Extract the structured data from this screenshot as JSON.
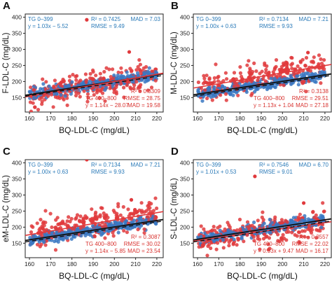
{
  "colors": {
    "blue": "#3b78c2",
    "red": "#e0393c",
    "blue_text": "#2a7ab8",
    "red_text": "#d8322f",
    "regression": "#111111",
    "axis": "#222222"
  },
  "chart_data": [
    {
      "type": "scatter",
      "panel": "A",
      "ylabel": "F-LDL-C (mg/dL)",
      "xlabel": "BQ-LDL-C (mg/dL)",
      "xlim": [
        158,
        223
      ],
      "ylim": [
        105,
        410
      ],
      "xticks": [
        160,
        170,
        180,
        190,
        200,
        210,
        220
      ],
      "yticks": [
        150,
        200,
        250,
        300,
        350,
        400
      ],
      "grid": false,
      "stats_blue": {
        "group": "TG 0–399",
        "r2": "R² = 0.7425",
        "equation": "y = 1.03x − 5.52",
        "rmse": "RMSE = 9.49",
        "mad": "MAD = 7.03"
      },
      "stats_red": {
        "group": "TG 400–800",
        "r2": "R² = 0.3309",
        "equation": "y = 1.14x − 28.07",
        "rmse": "RMSE = 28.75",
        "mad": "MAD = 19.58"
      },
      "series": [
        {
          "color": "blue",
          "slope": 1.03,
          "intercept": -5.52,
          "spread": 8
        },
        {
          "color": "red",
          "slope": 1.14,
          "intercept": -28.07,
          "spread": 22
        }
      ],
      "outliers": [
        [
          187,
          392
        ],
        [
          207,
          292
        ]
      ]
    },
    {
      "type": "scatter",
      "panel": "B",
      "ylabel": "M-LDL-C (mg/dL)",
      "xlabel": "BQ-LDL-C (mg/dL)",
      "xlim": [
        158,
        223
      ],
      "ylim": [
        105,
        410
      ],
      "xticks": [
        160,
        170,
        180,
        190,
        200,
        210,
        220
      ],
      "yticks": [
        150,
        200,
        250,
        300,
        350,
        400
      ],
      "grid": false,
      "stats_blue": {
        "group": "TG 0–399",
        "r2": "R² = 0.7134",
        "equation": "y = 1.00x + 0.63",
        "rmse": "RMSE = 9.93",
        "mad": "MAD = 7.21"
      },
      "stats_red": {
        "group": "TG 400–800",
        "r2": "R² = 0.3138",
        "equation": "y = 1.13x + 1.04",
        "rmse": "RMSE = 29.51",
        "mad": "MAD = 27.18"
      },
      "series": [
        {
          "color": "blue",
          "slope": 1.0,
          "intercept": 0.63,
          "spread": 8
        },
        {
          "color": "red",
          "slope": 1.13,
          "intercept": 1.04,
          "spread": 22
        }
      ],
      "outliers": [
        [
          187,
          425
        ],
        [
          212,
          290
        ]
      ]
    },
    {
      "type": "scatter",
      "panel": "C",
      "ylabel": "eM-LDL-C (mg/dL)",
      "xlabel": "BQ-LDL-C (mg/dL)",
      "xlim": [
        158,
        223
      ],
      "ylim": [
        105,
        410
      ],
      "xticks": [
        160,
        170,
        180,
        190,
        200,
        210,
        220
      ],
      "yticks": [
        150,
        200,
        250,
        300,
        350,
        400
      ],
      "grid": false,
      "stats_blue": {
        "group": "TG 0–399",
        "r2": "R² = 0.7134",
        "equation": "y = 1.00x + 0.63",
        "rmse": "RMSE = 9.93",
        "mad": "MAD = 7.21"
      },
      "stats_red": {
        "group": "TG 400–800",
        "r2": "R² = 0.3087",
        "equation": "y = 1.14x − 5.85",
        "rmse": "RMSE = 30.02",
        "mad": "MAD = 23.54"
      },
      "series": [
        {
          "color": "blue",
          "slope": 1.0,
          "intercept": 0.63,
          "spread": 8
        },
        {
          "color": "red",
          "slope": 1.14,
          "intercept": -5.85,
          "spread": 22
        }
      ],
      "outliers": [
        [
          187,
          410
        ],
        [
          208,
          285
        ]
      ]
    },
    {
      "type": "scatter",
      "panel": "D",
      "ylabel": "S-LDL-C (mg/dL)",
      "xlabel": "BQ-LDL-C (mg/dL)",
      "xlim": [
        158,
        223
      ],
      "ylim": [
        105,
        410
      ],
      "xticks": [
        160,
        170,
        180,
        190,
        200,
        210,
        220
      ],
      "yticks": [
        150,
        200,
        250,
        300,
        350,
        400
      ],
      "grid": false,
      "stats_blue": {
        "group": "TG 0–399",
        "r2": "R² = 0.7546",
        "equation": "y = 1.01x + 0.53",
        "rmse": "RMSE = 9.01",
        "mad": "MAD = 6.70"
      },
      "stats_red": {
        "group": "TG 400–800",
        "r2": "R² = 0.3557",
        "equation": "y = 0.93x + 9.47",
        "rmse": "RMSE = 22.02",
        "mad": "MAD = 16.17"
      },
      "series": [
        {
          "color": "blue",
          "slope": 1.01,
          "intercept": 0.53,
          "spread": 8
        },
        {
          "color": "red",
          "slope": 0.93,
          "intercept": 9.47,
          "spread": 20
        }
      ],
      "outliers": [
        [
          187,
          358
        ],
        [
          210,
          275
        ]
      ]
    }
  ]
}
